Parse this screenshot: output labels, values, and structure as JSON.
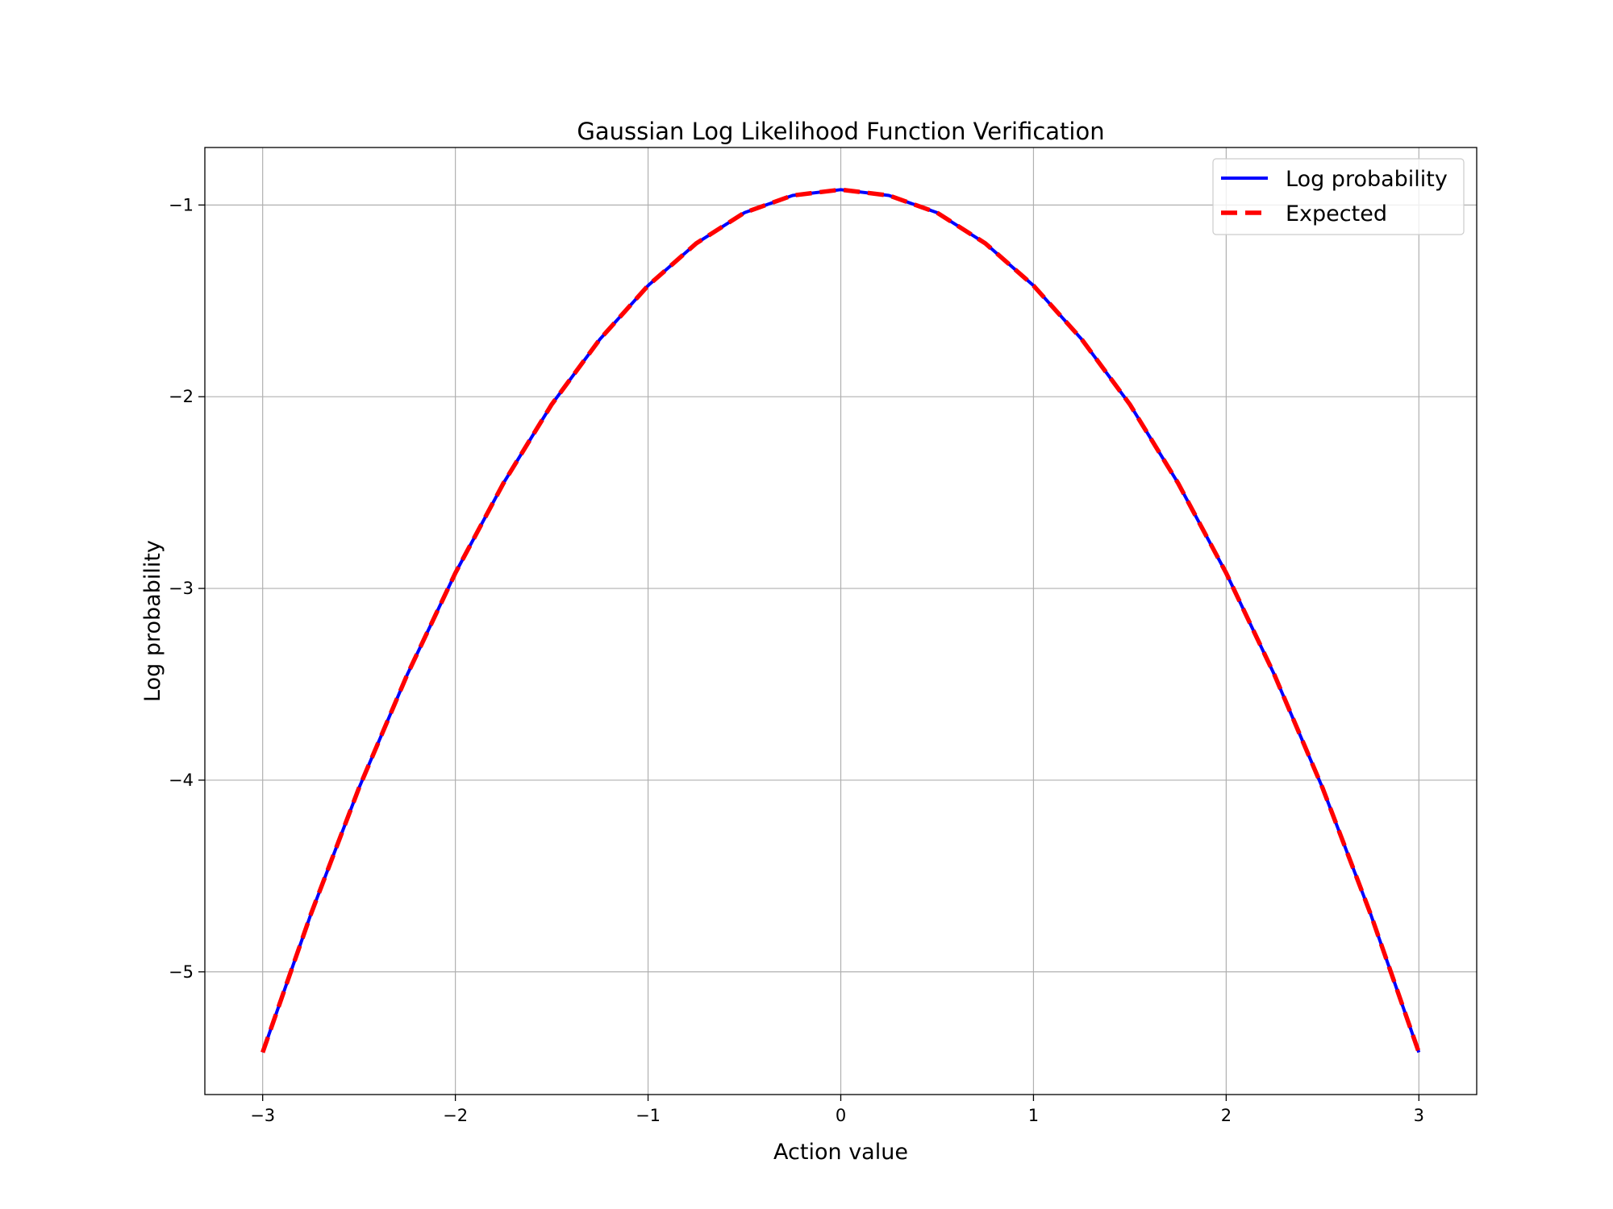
{
  "chart_data": {
    "type": "line",
    "title": "Gaussian Log Likelihood Function Verification",
    "xlabel": "Action value",
    "ylabel": "Log probability",
    "xlim": [
      -3.3,
      3.3
    ],
    "ylim": [
      -5.64,
      -0.7
    ],
    "x_ticks": [
      -3,
      -2,
      -1,
      0,
      1,
      2,
      3
    ],
    "x_tick_labels": [
      "−3",
      "−2",
      "−1",
      "0",
      "1",
      "2",
      "3"
    ],
    "y_ticks": [
      -1,
      -2,
      -3,
      -4,
      -5
    ],
    "y_tick_labels": [
      "−1",
      "−2",
      "−3",
      "−4",
      "−5"
    ],
    "grid": true,
    "legend_position": "top-right",
    "x": [
      -3.0,
      -2.75,
      -2.5,
      -2.25,
      -2.0,
      -1.75,
      -1.5,
      -1.25,
      -1.0,
      -0.75,
      -0.5,
      -0.25,
      0.0,
      0.25,
      0.5,
      0.75,
      1.0,
      1.25,
      1.5,
      1.75,
      2.0,
      2.25,
      2.5,
      2.75,
      3.0
    ],
    "series": [
      {
        "name": "Log probability",
        "color": "#0000ff",
        "style": "solid",
        "values": [
          -5.42,
          -4.7,
          -4.04,
          -3.45,
          -2.92,
          -2.45,
          -2.04,
          -1.7,
          -1.42,
          -1.2,
          -1.04,
          -0.95,
          -0.92,
          -0.95,
          -1.04,
          -1.2,
          -1.42,
          -1.7,
          -2.04,
          -2.45,
          -2.92,
          -3.45,
          -4.04,
          -4.7,
          -5.42
        ]
      },
      {
        "name": "Expected",
        "color": "#ff0000",
        "style": "dashed",
        "values": [
          -5.42,
          -4.7,
          -4.04,
          -3.45,
          -2.92,
          -2.45,
          -2.04,
          -1.7,
          -1.42,
          -1.2,
          -1.04,
          -0.95,
          -0.92,
          -0.95,
          -1.04,
          -1.2,
          -1.42,
          -1.7,
          -2.04,
          -2.45,
          -2.92,
          -3.45,
          -4.04,
          -4.7,
          -5.42
        ]
      }
    ]
  }
}
